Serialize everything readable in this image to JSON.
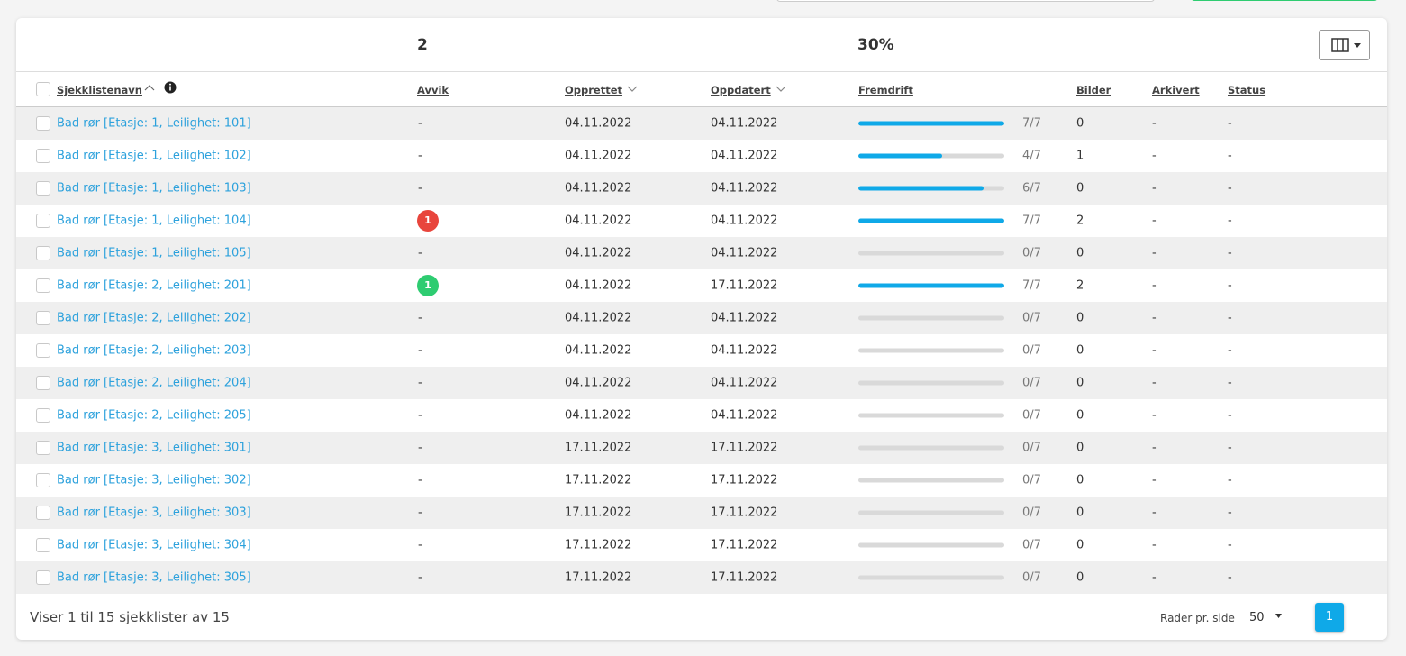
{
  "summary": {
    "avvik": "2",
    "fremdrift": "30%"
  },
  "table": {
    "headers": [
      "Sjekklistenavn",
      "Avvik",
      "Opprettet",
      "Oppdatert",
      "Fremdrift",
      "Bilder",
      "Arkivert",
      "Status"
    ],
    "rows": [
      {
        "name": "Bad rør [Etasje: 1, Leilighet: 101]",
        "avvik": "-",
        "opprettet": "04.11.2022",
        "oppdatert": "04.11.2022",
        "progress": 100,
        "progress_label": "7/7",
        "bilder": "0",
        "arkivert": "-",
        "status": "-"
      },
      {
        "name": "Bad rør [Etasje: 1, Leilighet: 102]",
        "avvik": "-",
        "opprettet": "04.11.2022",
        "oppdatert": "04.11.2022",
        "progress": 57.1,
        "progress_label": "4/7",
        "bilder": "1",
        "arkivert": "-",
        "status": "-"
      },
      {
        "name": "Bad rør [Etasje: 1, Leilighet: 103]",
        "avvik": "-",
        "opprettet": "04.11.2022",
        "oppdatert": "04.11.2022",
        "progress": 85.7,
        "progress_label": "6/7",
        "bilder": "0",
        "arkivert": "-",
        "status": "-"
      },
      {
        "name": "Bad rør [Etasje: 1, Leilighet: 104]",
        "avvik": "1",
        "avvik_color": "#e8453c",
        "opprettet": "04.11.2022",
        "oppdatert": "04.11.2022",
        "progress": 100,
        "progress_label": "7/7",
        "bilder": "2",
        "arkivert": "-",
        "status": "-"
      },
      {
        "name": "Bad rør [Etasje: 1, Leilighet: 105]",
        "avvik": "-",
        "opprettet": "04.11.2022",
        "oppdatert": "04.11.2022",
        "progress": 0,
        "progress_label": "0/7",
        "bilder": "0",
        "arkivert": "-",
        "status": "-"
      },
      {
        "name": "Bad rør [Etasje: 2, Leilighet: 201]",
        "avvik": "1",
        "avvik_color": "#2ecc71",
        "opprettet": "04.11.2022",
        "oppdatert": "17.11.2022",
        "progress": 100,
        "progress_label": "7/7",
        "bilder": "2",
        "arkivert": "-",
        "status": "-"
      },
      {
        "name": "Bad rør [Etasje: 2, Leilighet: 202]",
        "avvik": "-",
        "opprettet": "04.11.2022",
        "oppdatert": "04.11.2022",
        "progress": 0,
        "progress_label": "0/7",
        "bilder": "0",
        "arkivert": "-",
        "status": "-"
      },
      {
        "name": "Bad rør [Etasje: 2, Leilighet: 203]",
        "avvik": "-",
        "opprettet": "04.11.2022",
        "oppdatert": "04.11.2022",
        "progress": 0,
        "progress_label": "0/7",
        "bilder": "0",
        "arkivert": "-",
        "status": "-"
      },
      {
        "name": "Bad rør [Etasje: 2, Leilighet: 204]",
        "avvik": "-",
        "opprettet": "04.11.2022",
        "oppdatert": "04.11.2022",
        "progress": 0,
        "progress_label": "0/7",
        "bilder": "0",
        "arkivert": "-",
        "status": "-"
      },
      {
        "name": "Bad rør [Etasje: 2, Leilighet: 205]",
        "avvik": "-",
        "opprettet": "04.11.2022",
        "oppdatert": "04.11.2022",
        "progress": 0,
        "progress_label": "0/7",
        "bilder": "0",
        "arkivert": "-",
        "status": "-"
      },
      {
        "name": "Bad rør [Etasje: 3, Leilighet: 301]",
        "avvik": "-",
        "opprettet": "17.11.2022",
        "oppdatert": "17.11.2022",
        "progress": 0,
        "progress_label": "0/7",
        "bilder": "0",
        "arkivert": "-",
        "status": "-"
      },
      {
        "name": "Bad rør [Etasje: 3, Leilighet: 302]",
        "avvik": "-",
        "opprettet": "17.11.2022",
        "oppdatert": "17.11.2022",
        "progress": 0,
        "progress_label": "0/7",
        "bilder": "0",
        "arkivert": "-",
        "status": "-"
      },
      {
        "name": "Bad rør [Etasje: 3, Leilighet: 303]",
        "avvik": "-",
        "opprettet": "17.11.2022",
        "oppdatert": "17.11.2022",
        "progress": 0,
        "progress_label": "0/7",
        "bilder": "0",
        "arkivert": "-",
        "status": "-"
      },
      {
        "name": "Bad rør [Etasje: 3, Leilighet: 304]",
        "avvik": "-",
        "opprettet": "17.11.2022",
        "oppdatert": "17.11.2022",
        "progress": 0,
        "progress_label": "0/7",
        "bilder": "0",
        "arkivert": "-",
        "status": "-"
      },
      {
        "name": "Bad rør [Etasje: 3, Leilighet: 305]",
        "avvik": "-",
        "opprettet": "17.11.2022",
        "oppdatert": "17.11.2022",
        "progress": 0,
        "progress_label": "0/7",
        "bilder": "0",
        "arkivert": "-",
        "status": "-"
      }
    ]
  },
  "footer": {
    "info": "Viser 1 til 15 sjekklister av 15",
    "rows_per_page_label": "Rader pr. side",
    "rows_per_page": "50",
    "page": "1"
  }
}
